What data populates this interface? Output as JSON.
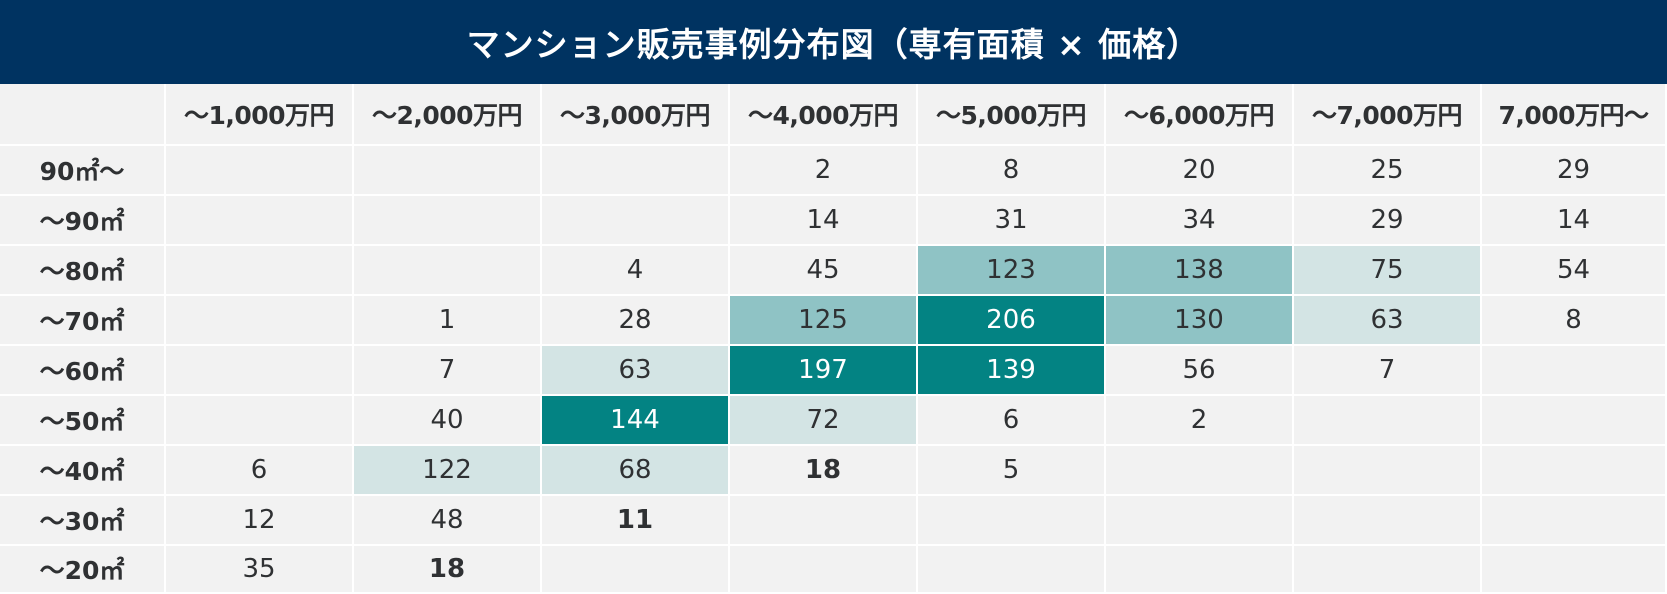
{
  "title": "マンション販売事例分布図（専有面積 × 価格）",
  "chart_data": {
    "type": "heatmap",
    "title": "マンション販売事例分布図（専有面積 × 価格）",
    "columns": [
      "～1,000万円",
      "～2,000万円",
      "～3,000万円",
      "～4,000万円",
      "～5,000万円",
      "～6,000万円",
      "～7,000万円",
      "7,000万円～"
    ],
    "rows": [
      "90㎡～",
      "～90㎡",
      "～80㎡",
      "～70㎡",
      "～60㎡",
      "～50㎡",
      "～40㎡",
      "～30㎡",
      "～20㎡"
    ],
    "values": [
      [
        null,
        null,
        null,
        2,
        8,
        20,
        25,
        29
      ],
      [
        null,
        null,
        null,
        14,
        31,
        34,
        29,
        14
      ],
      [
        null,
        null,
        4,
        45,
        123,
        138,
        75,
        54
      ],
      [
        null,
        1,
        28,
        125,
        206,
        130,
        63,
        8
      ],
      [
        null,
        7,
        63,
        197,
        139,
        56,
        7,
        null
      ],
      [
        null,
        40,
        144,
        72,
        6,
        2,
        null,
        null
      ],
      [
        6,
        122,
        68,
        18,
        5,
        null,
        null,
        null
      ],
      [
        12,
        48,
        11,
        null,
        null,
        null,
        null,
        null
      ],
      [
        35,
        18,
        null,
        null,
        null,
        null,
        null,
        null
      ]
    ],
    "bold_cells": [
      [
        6,
        3
      ],
      [
        7,
        2
      ],
      [
        8,
        1
      ]
    ],
    "colors": {
      "header_bg": "#003361",
      "cell_bg": "#f2f2f2",
      "light": "#d3e4e4",
      "medium": "#8fc3c5",
      "dark": "#038383"
    }
  }
}
